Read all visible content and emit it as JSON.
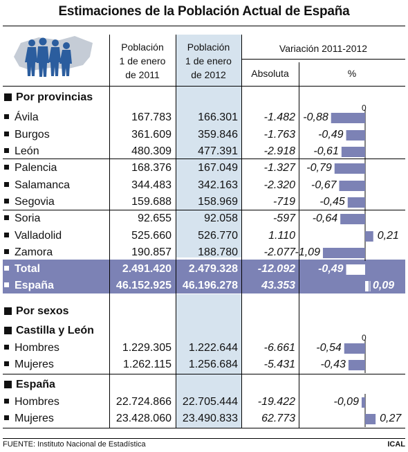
{
  "title": "Estimaciones de la Población Actual de España",
  "headers": {
    "col2011": [
      "Población",
      "1 de enero",
      "de 2011"
    ],
    "col2012": [
      "Población",
      "1 de enero",
      "de 2012"
    ],
    "variacion": "Variación 2011-2012",
    "absoluta": "Absoluta",
    "pct": "%"
  },
  "sections": {
    "provincias": "Por provincias",
    "sexos": "Por sexos",
    "cyl": "Castilla y León",
    "espana": "España"
  },
  "axis_zero": "0",
  "footer": {
    "source": "FUENTE: Instituto Nacional de Estadística",
    "brand": "ICAL"
  },
  "colors": {
    "highlight": "#7c82b5",
    "column": "#d6e3ee",
    "bars": "#7c82b5"
  },
  "chart_data": {
    "type": "table",
    "title": "Estimaciones de la Población Actual de España",
    "columns": [
      "Población 1 de enero de 2011",
      "Población 1 de enero de 2012",
      "Absoluta",
      "%"
    ],
    "provincias": [
      {
        "name": "Ávila",
        "p2011": "167.783",
        "p2012": "166.301",
        "abs": "-1.482",
        "pct_label": "-0,88",
        "pct": -0.88
      },
      {
        "name": "Burgos",
        "p2011": "361.609",
        "p2012": "359.846",
        "abs": "-1.763",
        "pct_label": "-0,49",
        "pct": -0.49
      },
      {
        "name": "León",
        "p2011": "480.309",
        "p2012": "477.391",
        "abs": "-2.918",
        "pct_label": "-0,61",
        "pct": -0.61
      },
      {
        "name": "Palencia",
        "p2011": "168.376",
        "p2012": "167.049",
        "abs": "-1.327",
        "pct_label": "-0,79",
        "pct": -0.79
      },
      {
        "name": "Salamanca",
        "p2011": "344.483",
        "p2012": "342.163",
        "abs": "-2.320",
        "pct_label": "-0,67",
        "pct": -0.67
      },
      {
        "name": "Segovia",
        "p2011": "159.688",
        "p2012": "158.969",
        "abs": "-719",
        "pct_label": "-0,45",
        "pct": -0.45
      },
      {
        "name": "Soria",
        "p2011": "92.655",
        "p2012": "92.058",
        "abs": "-597",
        "pct_label": "-0,64",
        "pct": -0.64
      },
      {
        "name": "Valladolid",
        "p2011": "525.660",
        "p2012": "526.770",
        "abs": "1.110",
        "pct_label": "0,21",
        "pct": 0.21
      },
      {
        "name": "Zamora",
        "p2011": "190.857",
        "p2012": "188.780",
        "abs": "-2.077",
        "pct_label": "-1,09",
        "pct": -1.09
      }
    ],
    "totales": [
      {
        "name": "Total",
        "p2011": "2.491.420",
        "p2012": "2.479.328",
        "abs": "-12.092",
        "pct_label": "-0,49",
        "pct": -0.49
      },
      {
        "name": "España",
        "p2011": "46.152.925",
        "p2012": "46.196.278",
        "abs": "43.353",
        "pct_label": "0,09",
        "pct": 0.09
      }
    ],
    "cyl": [
      {
        "name": "Hombres",
        "p2011": "1.229.305",
        "p2012": "1.222.644",
        "abs": "-6.661",
        "pct_label": "-0,54",
        "pct": -0.54
      },
      {
        "name": "Mujeres",
        "p2011": "1.262.115",
        "p2012": "1.256.684",
        "abs": "-5.431",
        "pct_label": "-0,43",
        "pct": -0.43
      }
    ],
    "espana": [
      {
        "name": "Hombres",
        "p2011": "22.724.866",
        "p2012": "22.705.444",
        "abs": "-19.422",
        "pct_label": "-0,09",
        "pct": -0.09
      },
      {
        "name": "Mujeres",
        "p2011": "23.428.060",
        "p2012": "23.490.833",
        "abs": "62.773",
        "pct_label": "0,27",
        "pct": 0.27
      }
    ]
  }
}
